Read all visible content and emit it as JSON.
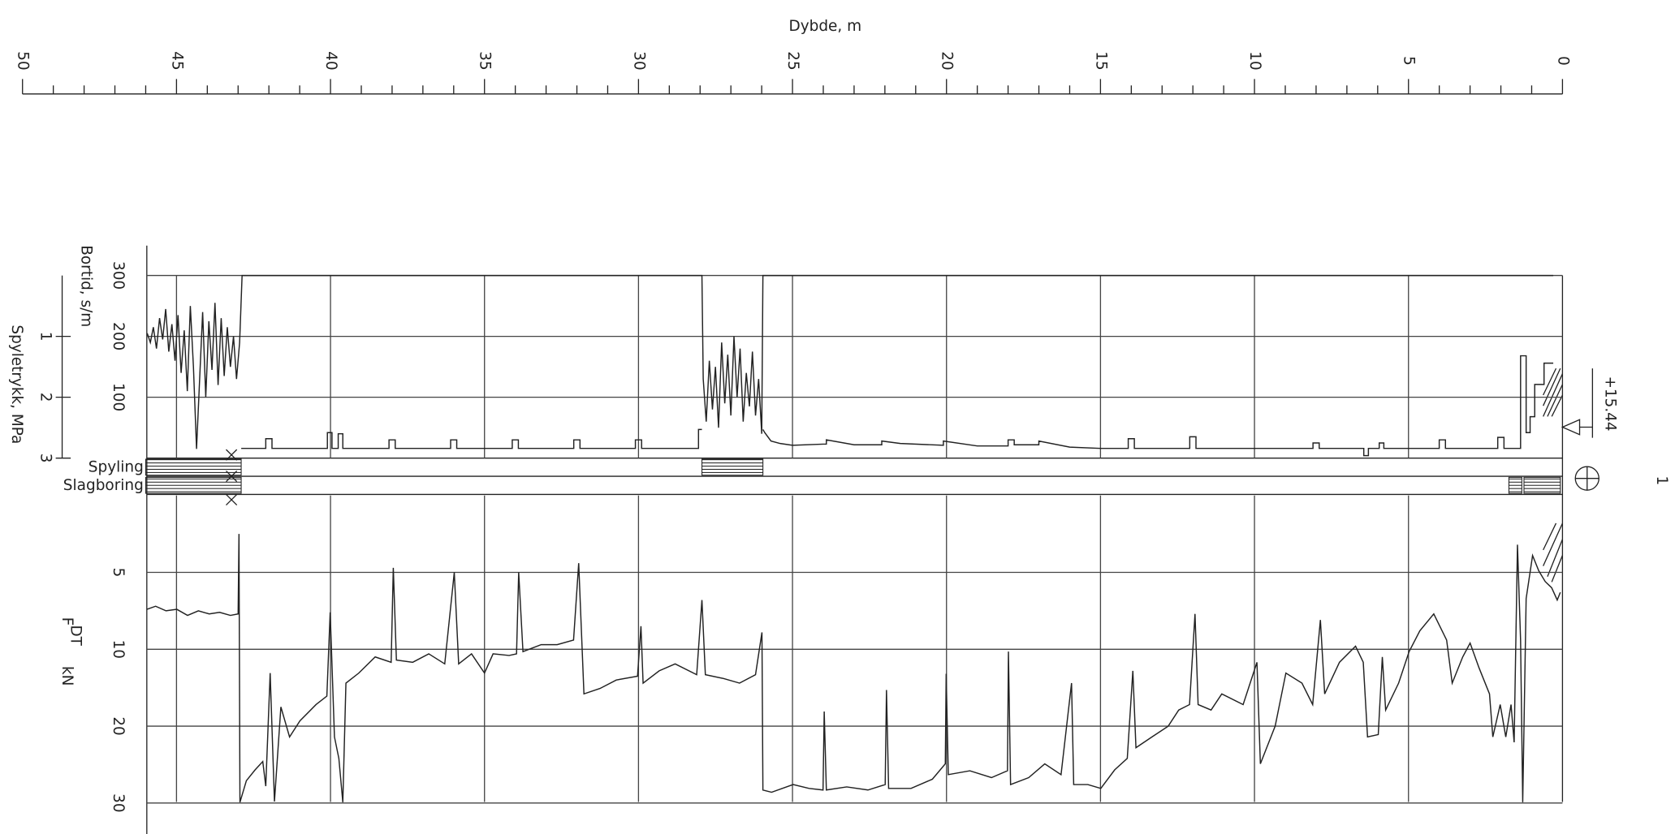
{
  "depth_axis": {
    "title": "Dybde, m",
    "xlim": [
      50,
      0
    ],
    "xticks": [
      0,
      5,
      10,
      15,
      20,
      25,
      30,
      35,
      40,
      45,
      50
    ],
    "minor_ticks": [
      1,
      2,
      3,
      4,
      6,
      7,
      8,
      9,
      11,
      12,
      13,
      14,
      16,
      17,
      18,
      19,
      21,
      22,
      23,
      24,
      26,
      27,
      28,
      29,
      31,
      32,
      33,
      34,
      36,
      37,
      38,
      39,
      41,
      42,
      43,
      44,
      46,
      47,
      48,
      49
    ]
  },
  "chart_data": [
    {
      "type": "line",
      "y_label": "Bortid, s/m",
      "ylim": [
        0,
        300
      ],
      "yticks": [
        100,
        200,
        300
      ],
      "y2_label": "Spyletrykk, MPa",
      "y2lim": [
        0,
        3
      ],
      "y2ticks": [
        1,
        2,
        3
      ],
      "series": [
        {
          "color": "#222",
          "x": [
            45.95,
            45.85,
            45.75,
            45.65,
            45.55,
            45.45,
            45.35,
            45.25,
            45.15,
            45.05,
            44.95,
            44.85,
            44.75,
            44.65,
            44.55,
            44.45,
            44.35,
            44.25,
            44.15,
            44.05,
            43.95,
            43.85,
            43.75,
            43.65,
            43.55,
            43.45,
            43.35,
            43.25,
            43.15,
            43.05,
            42.95,
            42.87,
            27.94,
            27.9,
            27.8,
            27.7,
            27.6,
            27.5,
            27.4,
            27.3,
            27.2,
            27.1,
            27.0,
            26.9,
            26.8,
            26.7,
            26.6,
            26.5,
            26.4,
            26.3,
            26.2,
            26.1,
            26.0,
            25.96,
            0.3
          ],
          "values": [
            205,
            190,
            215,
            180,
            230,
            195,
            245,
            175,
            220,
            160,
            235,
            140,
            210,
            110,
            250,
            150,
            15,
            130,
            240,
            100,
            225,
            145,
            255,
            120,
            230,
            135,
            215,
            150,
            200,
            130,
            190,
            300,
            300,
            130,
            60,
            160,
            80,
            150,
            50,
            190,
            90,
            170,
            70,
            200,
            100,
            180,
            60,
            140,
            85,
            175,
            70,
            130,
            40,
            300,
            300
          ]
        },
        {
          "color": "#222",
          "axis": "y2",
          "x": [
            42.9,
            42.1,
            42.1,
            41.9,
            41.9,
            40.1,
            40.1,
            39.95,
            39.95,
            39.75,
            39.75,
            39.6,
            39.6,
            38.1,
            38.1,
            37.9,
            37.9,
            36.1,
            36.1,
            35.9,
            35.9,
            34.1,
            34.1,
            33.9,
            33.9,
            32.1,
            32.1,
            31.9,
            31.9,
            30.1,
            30.1,
            29.9,
            29.9,
            28.05,
            28.05,
            27.94,
            null,
            25.96,
            25.9,
            25.7,
            25.4,
            25.0,
            24.0,
            23.9,
            23.9,
            23.0,
            22.1,
            22.1,
            21.5,
            20.1,
            20.1,
            19.0,
            18.0,
            18.0,
            17.8,
            17.8,
            17.0,
            17.0,
            16.0,
            15.0,
            14.1,
            14.1,
            13.9,
            13.9,
            12.1,
            12.1,
            11.9,
            11.9,
            10.0,
            8.1,
            8.1,
            7.9,
            7.9,
            6.45,
            6.45,
            6.3,
            6.3,
            5.95,
            5.95,
            5.8,
            5.8,
            4.0,
            4.0,
            3.8,
            3.8,
            2.1,
            2.1,
            1.9,
            1.9,
            1.36,
            1.36,
            1.18,
            1.18,
            1.05,
            1.05,
            0.9,
            0.9,
            0.6,
            0.6,
            0.3
          ],
          "values": [
            2.84,
            2.84,
            2.68,
            2.68,
            2.84,
            2.84,
            2.58,
            2.58,
            2.84,
            2.84,
            2.6,
            2.6,
            2.84,
            2.84,
            2.7,
            2.7,
            2.84,
            2.84,
            2.7,
            2.7,
            2.84,
            2.84,
            2.7,
            2.7,
            2.84,
            2.84,
            2.7,
            2.7,
            2.84,
            2.84,
            2.7,
            2.7,
            2.84,
            2.84,
            2.53,
            2.53,
            null,
            2.53,
            2.58,
            2.72,
            2.76,
            2.79,
            2.77,
            2.77,
            2.7,
            2.78,
            2.78,
            2.72,
            2.76,
            2.79,
            2.72,
            2.8,
            2.8,
            2.7,
            2.7,
            2.78,
            2.78,
            2.72,
            2.82,
            2.84,
            2.84,
            2.68,
            2.68,
            2.84,
            2.84,
            2.65,
            2.65,
            2.84,
            2.84,
            2.84,
            2.75,
            2.75,
            2.84,
            2.84,
            2.96,
            2.96,
            2.84,
            2.84,
            2.75,
            2.75,
            2.84,
            2.84,
            2.7,
            2.7,
            2.84,
            2.84,
            2.66,
            2.66,
            2.84,
            2.84,
            1.32,
            1.32,
            2.58,
            2.58,
            2.32,
            2.32,
            1.79,
            1.79,
            1.44,
            1.44
          ]
        }
      ]
    },
    {
      "type": "band",
      "series": [
        {
          "name": "Spyling",
          "intervals": [
            [
              46,
              42.9
            ],
            [
              27.94,
              25.96
            ]
          ]
        },
        {
          "name": "Slagboring",
          "intervals": [
            [
              46,
              42.9
            ],
            [
              1.74,
              1.32
            ],
            [
              1.25,
              0.07
            ]
          ]
        }
      ]
    },
    {
      "type": "line",
      "y_label": "F",
      "y_label_sub": "DT",
      "y_unit": "kN",
      "ylim": [
        0,
        30
      ],
      "yticks": [
        5,
        10,
        20,
        30
      ],
      "series": [
        {
          "color": "#222",
          "x": [
            45.96,
            45.68,
            45.34,
            44.99,
            44.64,
            44.29,
            43.94,
            43.6,
            43.25,
            43.0,
            42.97,
            42.94,
            42.73,
            42.45,
            42.2,
            42.1,
            41.96,
            41.82,
            41.61,
            41.33,
            40.99,
            40.47,
            40.12,
            40.01,
            39.87,
            39.73,
            39.6,
            39.5,
            39.08,
            38.55,
            38.03,
            37.96,
            37.86,
            37.33,
            36.81,
            36.29,
            35.98,
            35.84,
            35.42,
            35.0,
            34.72,
            34.2,
            33.96,
            33.89,
            33.75,
            33.16,
            32.64,
            32.11,
            31.94,
            31.77,
            31.25,
            30.72,
            30.03,
            29.92,
            29.85,
            29.33,
            28.81,
            28.11,
            27.94,
            27.83,
            27.24,
            26.72,
            26.2,
            25.99,
            25.96,
            25.68,
            24.98,
            24.46,
            24.01,
            23.97,
            23.9,
            23.24,
            22.55,
            21.99,
            21.95,
            21.88,
            21.15,
            20.46,
            20.04,
            20.01,
            19.94,
            19.24,
            18.54,
            18.02,
            17.99,
            17.92,
            17.33,
            16.81,
            16.28,
            15.94,
            15.87,
            15.41,
            14.99,
            14.54,
            14.13,
            13.95,
            13.85,
            13.33,
            12.8,
            12.46,
            12.11,
            11.93,
            11.83,
            11.41,
            11.06,
            10.37,
            9.92,
            9.81,
            9.33,
            8.98,
            8.46,
            8.11,
            7.86,
            7.72,
            7.24,
            6.72,
            6.47,
            6.33,
            5.98,
            5.85,
            5.74,
            5.32,
            4.98,
            4.63,
            4.18,
            3.76,
            3.58,
            3.24,
            3.0,
            2.71,
            2.37,
            2.26,
            2.02,
            1.84,
            1.67,
            1.57,
            1.46,
            1.36,
            1.29,
            1.18,
            0.97,
            0.77,
            0.56,
            0.35,
            0.17,
            0.07
          ],
          "values": [
            7.4,
            7.2,
            7.5,
            7.4,
            7.8,
            7.5,
            7.7,
            7.6,
            7.8,
            7.7,
            2.5,
            29.9,
            27.1,
            25.7,
            24.6,
            27.8,
            13.1,
            29.8,
            17.5,
            21.4,
            19.3,
            17.2,
            16.1,
            7.6,
            21.4,
            24.2,
            29.9,
            14.4,
            13.1,
            11.0,
            11.7,
            4.7,
            11.4,
            11.7,
            10.6,
            11.9,
            5.0,
            11.9,
            10.6,
            13.1,
            10.6,
            10.8,
            10.6,
            5.0,
            10.3,
            9.7,
            9.7,
            9.4,
            4.4,
            15.8,
            15.1,
            14.0,
            13.5,
            8.5,
            14.4,
            12.8,
            11.9,
            13.3,
            6.8,
            13.3,
            13.8,
            14.4,
            13.3,
            8.9,
            28.3,
            28.6,
            27.6,
            28.1,
            28.3,
            18.1,
            28.3,
            27.9,
            28.3,
            27.6,
            15.3,
            28.1,
            28.1,
            26.9,
            24.9,
            13.2,
            26.3,
            25.8,
            26.7,
            25.8,
            10.3,
            27.6,
            26.7,
            24.9,
            26.3,
            14.4,
            27.6,
            27.6,
            28.1,
            25.7,
            24.2,
            12.8,
            22.8,
            21.4,
            20.0,
            17.9,
            17.2,
            7.7,
            17.2,
            17.9,
            15.8,
            17.2,
            11.7,
            24.9,
            20.0,
            13.1,
            14.4,
            17.2,
            8.1,
            15.8,
            11.7,
            9.8,
            11.7,
            21.4,
            21.1,
            11.0,
            17.9,
            14.4,
            10.3,
            8.8,
            7.7,
            9.4,
            14.4,
            11.0,
            9.6,
            12.4,
            15.8,
            21.4,
            17.2,
            21.4,
            17.2,
            22.1,
            3.2,
            9.4,
            29.9,
            6.7,
            3.9,
            4.9,
            5.6,
            6.0,
            6.8,
            6.3
          ]
        }
      ]
    }
  ],
  "annotations": {
    "elevation": "+15.44",
    "borehole": "1"
  }
}
